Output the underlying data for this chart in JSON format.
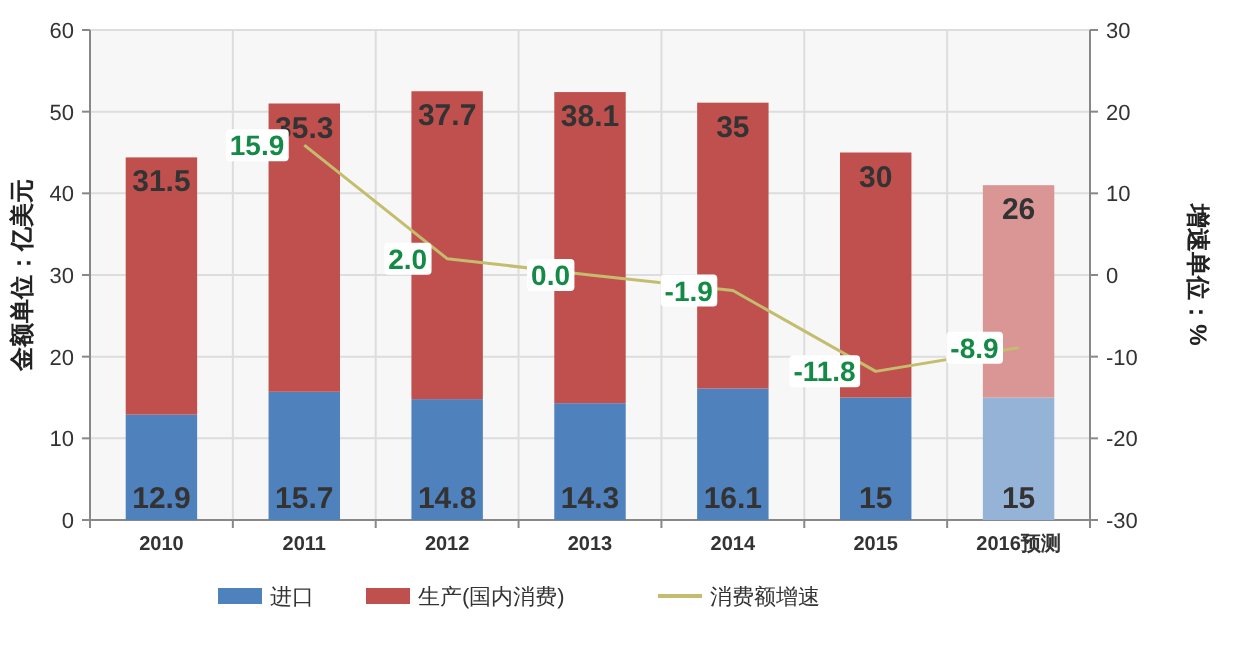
{
  "chart_data": {
    "type": "bar",
    "stacked": true,
    "ylabel": "金额单位：亿美元",
    "y2label": "增速单位：%",
    "categories": [
      "2010",
      "2011",
      "2012",
      "2013",
      "2014",
      "2015",
      "2016预测"
    ],
    "series": [
      {
        "name": "进口",
        "color": "#4f81bd",
        "colors": [
          "#4f81bd",
          "#4f81bd",
          "#4f81bd",
          "#4f81bd",
          "#4f81bd",
          "#4f81bd",
          "#95b3d7"
        ],
        "values": [
          12.9,
          15.7,
          14.8,
          14.3,
          16.1,
          15,
          15
        ],
        "value_labels": [
          "12.9",
          "15.7",
          "14.8",
          "14.3",
          "16.1",
          "15",
          "15"
        ]
      },
      {
        "name": "生产(国内消费)",
        "color": "#c0504d",
        "colors": [
          "#c0504d",
          "#c0504d",
          "#c0504d",
          "#c0504d",
          "#c0504d",
          "#c0504d",
          "#d99694"
        ],
        "values": [
          31.5,
          35.3,
          37.7,
          38.1,
          35,
          30,
          26
        ],
        "value_labels": [
          "31.5",
          "35.3",
          "37.7",
          "38.1",
          "35",
          "30",
          "26"
        ]
      },
      {
        "name": "消费额增速",
        "type": "line",
        "axis": "y2",
        "color": "#c4bd6e",
        "values": [
          null,
          15.9,
          2.0,
          0.0,
          -1.9,
          -11.8,
          -8.9
        ],
        "value_labels": [
          null,
          "15.9",
          "2.0",
          "0.0",
          "-1.9",
          "-11.8",
          "-8.9"
        ]
      }
    ],
    "ylim": [
      0,
      60
    ],
    "yticks": [
      0,
      10,
      20,
      30,
      40,
      50,
      60
    ],
    "y2lim": [
      -30,
      30
    ],
    "y2ticks": [
      -30,
      -20,
      -10,
      0,
      10,
      20,
      30
    ],
    "grid": true,
    "legend": "bottom",
    "marker": "none",
    "line_style": "solid"
  }
}
